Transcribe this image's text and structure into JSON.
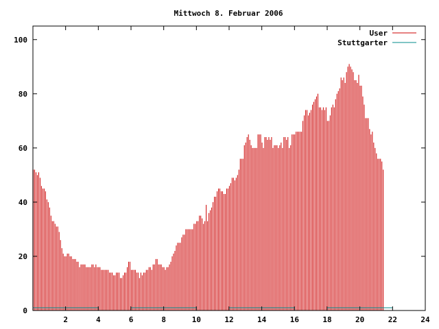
{
  "chart_data": {
    "type": "bar",
    "title": "Mittwoch 8. Februar 2006",
    "xlabel": "",
    "ylabel": "",
    "xlim": [
      0,
      24
    ],
    "ylim": [
      0,
      105
    ],
    "x_ticks": [
      "2",
      "4",
      "6",
      "8",
      "10",
      "12",
      "14",
      "16",
      "18",
      "20",
      "22",
      "24"
    ],
    "y_ticks": [
      "0",
      "20",
      "40",
      "60",
      "80",
      "100"
    ],
    "legend_position": "top-right",
    "grid": false,
    "series": [
      {
        "name": "User",
        "color": "#cc0000",
        "x_start": 0,
        "x_step": 0.0833,
        "values": [
          52,
          52,
          51,
          50,
          51,
          49,
          46,
          45,
          45,
          44,
          41,
          40,
          38,
          35,
          33,
          33,
          32,
          31,
          31,
          29,
          26,
          23,
          21,
          20,
          20,
          21,
          21,
          20,
          20,
          19,
          19,
          19,
          18,
          18,
          16,
          17,
          17,
          17,
          17,
          16,
          16,
          16,
          16,
          17,
          17,
          16,
          17,
          16,
          16,
          16,
          15,
          15,
          15,
          15,
          15,
          15,
          14,
          14,
          14,
          13,
          13,
          14,
          14,
          14,
          12,
          12,
          13,
          14,
          14,
          16,
          18,
          18,
          15,
          15,
          15,
          15,
          14,
          14,
          12,
          14,
          13,
          14,
          14,
          15,
          15,
          16,
          16,
          15,
          17,
          17,
          19,
          19,
          17,
          17,
          17,
          16,
          16,
          15,
          16,
          16,
          17,
          18,
          20,
          21,
          22,
          24,
          25,
          25,
          25,
          27,
          28,
          28,
          30,
          30,
          30,
          30,
          30,
          30,
          32,
          32,
          33,
          33,
          35,
          35,
          34,
          32,
          33,
          39,
          33,
          36,
          37,
          38,
          40,
          42,
          42,
          44,
          45,
          45,
          44,
          44,
          43,
          43,
          45,
          45,
          46,
          47,
          49,
          49,
          48,
          49,
          50,
          52,
          56,
          56,
          56,
          61,
          62,
          64,
          65,
          63,
          61,
          60,
          60,
          60,
          60,
          65,
          65,
          65,
          62,
          60,
          64,
          64,
          63,
          64,
          63,
          64,
          60,
          61,
          61,
          61,
          60,
          61,
          62,
          60,
          64,
          64,
          63,
          64,
          60,
          61,
          65,
          65,
          65,
          66,
          66,
          66,
          66,
          66,
          70,
          72,
          74,
          74,
          72,
          73,
          74,
          76,
          77,
          78,
          79,
          80,
          75,
          75,
          74,
          75,
          74,
          75,
          70,
          70,
          72,
          75,
          76,
          75,
          78,
          80,
          81,
          82,
          86,
          85,
          86,
          84,
          88,
          90,
          91,
          90,
          89,
          88,
          85,
          85,
          84,
          87,
          83,
          83,
          79,
          76,
          71,
          71,
          71,
          67,
          65,
          66,
          62,
          60,
          58,
          56,
          56,
          56,
          55,
          52
        ]
      },
      {
        "name": "Stuttgarter",
        "color": "#008b8b",
        "values": [
          1,
          1,
          0,
          1,
          1,
          0,
          1,
          1,
          0,
          1,
          1,
          0
        ]
      }
    ]
  }
}
